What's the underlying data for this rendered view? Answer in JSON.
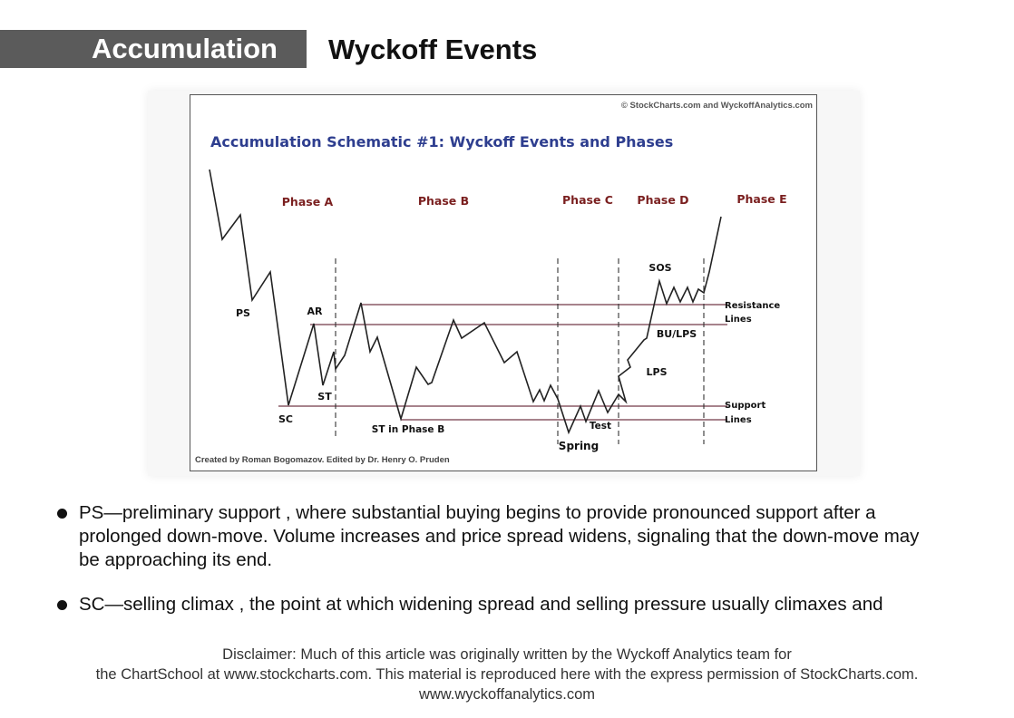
{
  "header": {
    "tab_label": "Accumulation",
    "title": "Wyckoff Events",
    "tab_color": "#5b5b5b"
  },
  "schematic": {
    "copyright": "© StockCharts.com and WyckoffAnalytics.com",
    "title": "Accumulation Schematic #1: Wyckoff Events and Phases",
    "title_color": "#2e3e8f",
    "phase_color": "#7a1f1f",
    "line_color": "#8a5a66",
    "phases": [
      "Phase A",
      "Phase B",
      "Phase C",
      "Phase D",
      "Phase E"
    ],
    "events": {
      "ps": "PS",
      "sc": "SC",
      "ar": "AR",
      "st": "ST",
      "st_phase_b": "ST in Phase B",
      "spring": "Spring",
      "test": "Test",
      "sos": "SOS",
      "bu_lps": "BU/LPS",
      "lps": "LPS"
    },
    "line_labels": {
      "resistance_1": "Resistance",
      "resistance_2": "Lines",
      "support_1": "Support",
      "support_2": "Lines"
    },
    "credit": "Created by Roman Bogomazov. Edited by Dr. Henry O. Pruden"
  },
  "bullets": [
    {
      "line1": "PS—preliminary support , where substantial buying begins to provide pronounced support after a",
      "line2": "prolonged down-move. Volume increases and price spread widens, signaling that the down-move may",
      "line3": "be approaching its end."
    },
    {
      "line1": "SC—selling climax , the point at which widening spread and selling pressure usually climaxes and"
    }
  ],
  "footer": {
    "line1": "Disclaimer: Much of this article was originally written by the Wyckoff Analytics team for",
    "line2": "the ChartSchool at www.stockcharts.com.  This material is reproduced here with the express permission of StockCharts.com.",
    "line3": "www.wyckoffanalytics.com"
  }
}
